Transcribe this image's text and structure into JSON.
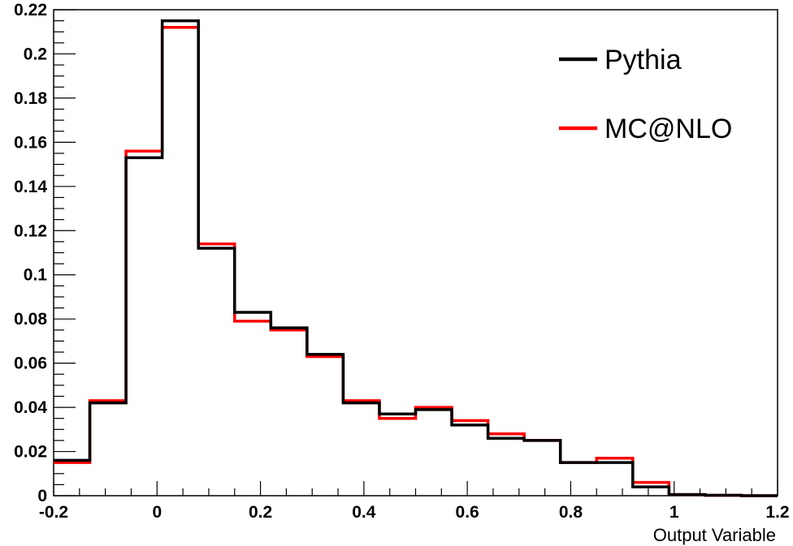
{
  "chart_data": {
    "type": "line",
    "style": "step-histogram",
    "xlabel": "Output Variable",
    "ylabel": "",
    "xlim": [
      -0.2,
      1.2
    ],
    "ylim": [
      0,
      0.22
    ],
    "x_ticks": [
      -0.2,
      0,
      0.2,
      0.4,
      0.6,
      0.8,
      1,
      1.2
    ],
    "x_tick_labels": [
      "-0.2",
      "0",
      "0.2",
      "0.4",
      "0.6",
      "0.8",
      "1",
      "1.2"
    ],
    "y_ticks": [
      0,
      0.02,
      0.04,
      0.06,
      0.08,
      0.1,
      0.12,
      0.14,
      0.16,
      0.18,
      0.2,
      0.22
    ],
    "y_tick_labels": [
      "0",
      "0.02",
      "0.04",
      "0.06",
      "0.08",
      "0.1",
      "0.12",
      "0.14",
      "0.16",
      "0.18",
      "0.2",
      "0.22"
    ],
    "bin_edges": [
      -0.2,
      -0.13,
      -0.06,
      0.01,
      0.08,
      0.15,
      0.22,
      0.29,
      0.36,
      0.43,
      0.5,
      0.57,
      0.64,
      0.71,
      0.78,
      0.85,
      0.92,
      0.99,
      1.06,
      1.13,
      1.2
    ],
    "grid": false,
    "legend_position": "top-right",
    "series": [
      {
        "name": "MC@NLO",
        "color": "#ff0000",
        "values": [
          0.015,
          0.043,
          0.156,
          0.212,
          0.114,
          0.079,
          0.075,
          0.063,
          0.043,
          0.035,
          0.04,
          0.034,
          0.028,
          0.025,
          0.015,
          0.017,
          0.006,
          0.0005,
          0.0002,
          0.0
        ]
      },
      {
        "name": "Pythia",
        "color": "#000000",
        "values": [
          0.016,
          0.042,
          0.153,
          0.215,
          0.112,
          0.083,
          0.076,
          0.064,
          0.042,
          0.037,
          0.039,
          0.032,
          0.026,
          0.025,
          0.015,
          0.015,
          0.004,
          0.0005,
          0.0002,
          0.0
        ]
      }
    ],
    "legend_order": [
      "Pythia",
      "MC@NLO"
    ]
  }
}
